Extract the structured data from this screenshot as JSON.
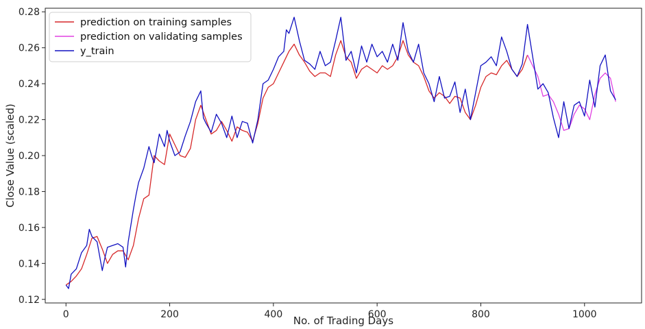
{
  "chart_data": {
    "type": "line",
    "title": "",
    "xlabel": "No. of Trading Days",
    "ylabel": "Close Value (scaled)",
    "xlim": [
      -40,
      1110
    ],
    "ylim": [
      0.118,
      0.282
    ],
    "xticks": [
      0,
      200,
      400,
      600,
      800,
      1000
    ],
    "xtick_labels": [
      "0",
      "200",
      "400",
      "600",
      "800",
      "1000"
    ],
    "yticks": [
      0.12,
      0.14,
      0.16,
      0.18,
      0.2,
      0.22,
      0.24,
      0.26,
      0.28
    ],
    "ytick_labels": [
      "0.12",
      "0.14",
      "0.16",
      "0.18",
      "0.20",
      "0.22",
      "0.24",
      "0.26",
      "0.28"
    ],
    "grid": false,
    "legend_position": "top-left",
    "series": [
      {
        "name": "prediction on training samples",
        "color": "#d62728",
        "x": [
          0,
          10,
          20,
          30,
          40,
          50,
          60,
          70,
          80,
          90,
          100,
          110,
          120,
          130,
          140,
          150,
          160,
          170,
          180,
          190,
          200,
          210,
          220,
          230,
          240,
          250,
          260,
          270,
          280,
          290,
          300,
          310,
          320,
          330,
          340,
          350,
          360,
          370,
          380,
          390,
          400,
          410,
          420,
          430,
          440,
          450,
          460,
          470,
          480,
          490,
          500,
          510,
          520,
          530,
          540,
          550,
          560,
          570,
          580,
          590,
          600,
          610,
          620,
          630,
          640,
          650,
          660,
          670,
          680,
          690,
          700,
          710,
          720,
          730,
          740,
          750,
          760,
          770,
          780,
          790,
          800,
          810,
          820,
          830,
          840,
          850,
          860,
          870,
          880,
          890
        ],
        "values": [
          0.128,
          0.13,
          0.133,
          0.137,
          0.145,
          0.154,
          0.155,
          0.148,
          0.14,
          0.145,
          0.147,
          0.147,
          0.142,
          0.15,
          0.165,
          0.176,
          0.178,
          0.2,
          0.197,
          0.195,
          0.212,
          0.206,
          0.2,
          0.199,
          0.204,
          0.22,
          0.228,
          0.22,
          0.212,
          0.214,
          0.219,
          0.214,
          0.208,
          0.216,
          0.214,
          0.213,
          0.208,
          0.218,
          0.232,
          0.238,
          0.24,
          0.246,
          0.252,
          0.258,
          0.262,
          0.256,
          0.252,
          0.247,
          0.244,
          0.246,
          0.246,
          0.244,
          0.256,
          0.264,
          0.255,
          0.252,
          0.243,
          0.248,
          0.25,
          0.248,
          0.246,
          0.25,
          0.248,
          0.25,
          0.255,
          0.264,
          0.256,
          0.252,
          0.25,
          0.244,
          0.236,
          0.232,
          0.235,
          0.233,
          0.229,
          0.233,
          0.232,
          0.224,
          0.22,
          0.228,
          0.238,
          0.244,
          0.246,
          0.245,
          0.25,
          0.253,
          0.248,
          0.244,
          0.248,
          0.256
        ]
      },
      {
        "name": "prediction on validating samples",
        "color": "#e040e0",
        "x": [
          890,
          900,
          910,
          920,
          930,
          940,
          950,
          960,
          970,
          980,
          990,
          1000,
          1010,
          1020,
          1030,
          1040,
          1050,
          1060
        ],
        "values": [
          0.256,
          0.25,
          0.244,
          0.233,
          0.234,
          0.23,
          0.223,
          0.214,
          0.215,
          0.223,
          0.228,
          0.226,
          0.22,
          0.234,
          0.243,
          0.246,
          0.243,
          0.23
        ]
      },
      {
        "name": "y_train",
        "color": "#1010c0",
        "x": [
          0,
          5,
          10,
          20,
          30,
          40,
          45,
          50,
          60,
          65,
          70,
          75,
          80,
          90,
          100,
          110,
          115,
          120,
          130,
          135,
          140,
          150,
          160,
          165,
          170,
          180,
          190,
          195,
          200,
          210,
          220,
          230,
          240,
          250,
          260,
          265,
          270,
          280,
          290,
          300,
          310,
          320,
          330,
          340,
          350,
          360,
          370,
          380,
          390,
          400,
          410,
          420,
          425,
          430,
          440,
          450,
          460,
          470,
          480,
          490,
          500,
          510,
          520,
          530,
          540,
          550,
          560,
          570,
          580,
          590,
          600,
          610,
          620,
          630,
          640,
          650,
          660,
          670,
          680,
          690,
          700,
          710,
          720,
          730,
          740,
          750,
          760,
          770,
          780,
          790,
          800,
          810,
          820,
          830,
          840,
          850,
          860,
          870,
          880,
          890,
          900,
          910,
          920,
          930,
          940,
          950,
          960,
          970,
          980,
          990,
          1000,
          1010,
          1020,
          1030,
          1040,
          1050,
          1060
        ],
        "values": [
          0.128,
          0.126,
          0.134,
          0.137,
          0.146,
          0.15,
          0.159,
          0.155,
          0.152,
          0.144,
          0.136,
          0.143,
          0.149,
          0.15,
          0.151,
          0.149,
          0.138,
          0.152,
          0.17,
          0.178,
          0.185,
          0.193,
          0.205,
          0.2,
          0.196,
          0.212,
          0.205,
          0.214,
          0.208,
          0.2,
          0.202,
          0.211,
          0.219,
          0.23,
          0.236,
          0.221,
          0.218,
          0.213,
          0.223,
          0.218,
          0.21,
          0.222,
          0.21,
          0.219,
          0.218,
          0.207,
          0.22,
          0.24,
          0.242,
          0.248,
          0.255,
          0.258,
          0.27,
          0.268,
          0.277,
          0.264,
          0.253,
          0.251,
          0.248,
          0.258,
          0.25,
          0.252,
          0.264,
          0.277,
          0.253,
          0.258,
          0.246,
          0.261,
          0.252,
          0.262,
          0.255,
          0.258,
          0.252,
          0.262,
          0.253,
          0.274,
          0.258,
          0.252,
          0.262,
          0.246,
          0.24,
          0.23,
          0.244,
          0.232,
          0.233,
          0.241,
          0.224,
          0.237,
          0.22,
          0.235,
          0.25,
          0.252,
          0.255,
          0.25,
          0.266,
          0.258,
          0.248,
          0.244,
          0.251,
          0.273,
          0.255,
          0.237,
          0.24,
          0.235,
          0.221,
          0.21,
          0.23,
          0.215,
          0.228,
          0.23,
          0.222,
          0.242,
          0.227,
          0.25,
          0.256,
          0.236,
          0.231
        ]
      }
    ]
  }
}
